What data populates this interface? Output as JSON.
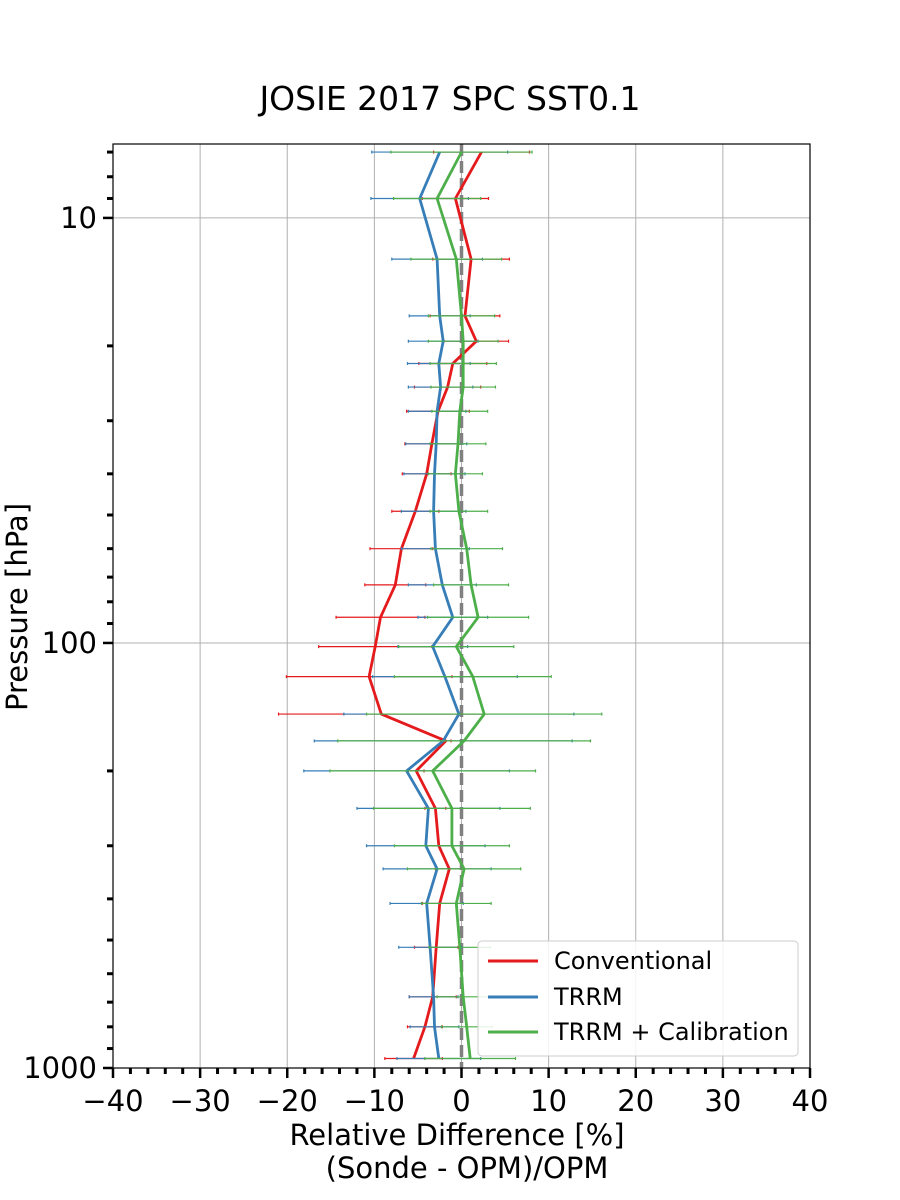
{
  "chart_data": {
    "type": "line",
    "title": "JOSIE 2017 SPC SST0.1",
    "xlabel": "Relative Difference [%]",
    "xlabel_line2": "(Sonde - OPM)/OPM",
    "ylabel": "Pressure [hPa]",
    "xlim": [
      -40,
      40
    ],
    "ylim": [
      1000,
      6.7
    ],
    "yscale": "log",
    "y_inverted": true,
    "grid": true,
    "x_ticks": [
      "−40",
      "−30",
      "−20",
      "−10",
      "0",
      "10",
      "20",
      "30",
      "40"
    ],
    "y_ticks": [
      "10",
      "100",
      "1000"
    ],
    "reference_line": {
      "x": 0,
      "style": "dashed",
      "color": "#808080"
    },
    "legend_position": "lower-right",
    "series": [
      {
        "name": "Conventional",
        "color": "#e41a1c",
        "points": [
          {
            "p": 7.0,
            "x": 2.3,
            "err": 5.5
          },
          {
            "p": 9.0,
            "x": -0.7,
            "err": 3.8
          },
          {
            "p": 12.5,
            "x": 1.1,
            "err": 4.4
          },
          {
            "p": 17.0,
            "x": 0.4,
            "err": 4.0
          },
          {
            "p": 19.5,
            "x": 1.7,
            "err": 3.7
          },
          {
            "p": 22.0,
            "x": -1.0,
            "err": 3.9
          },
          {
            "p": 25.0,
            "x": -1.6,
            "err": 3.8
          },
          {
            "p": 28.5,
            "x": -2.7,
            "err": 3.6
          },
          {
            "p": 34.0,
            "x": -3.4,
            "err": 3.1
          },
          {
            "p": 40.0,
            "x": -4.0,
            "err": 2.8
          },
          {
            "p": 49.0,
            "x": -5.3,
            "err": 2.7
          },
          {
            "p": 60.0,
            "x": -6.9,
            "err": 3.6
          },
          {
            "p": 73.0,
            "x": -7.6,
            "err": 3.5
          },
          {
            "p": 87.0,
            "x": -9.3,
            "err": 5.1
          },
          {
            "p": 102.0,
            "x": -9.9,
            "err": 6.5
          },
          {
            "p": 120.0,
            "x": -10.6,
            "err": 9.5
          },
          {
            "p": 147.0,
            "x": -9.2,
            "err": 11.8
          },
          {
            "p": 170.0,
            "x": -1.8,
            "err": 0.6
          },
          {
            "p": 200.0,
            "x": -5.2,
            "err": 0.9
          },
          {
            "p": 245.0,
            "x": -3.0,
            "err": 1.2
          },
          {
            "p": 300.0,
            "x": -2.6,
            "err": 1.5
          },
          {
            "p": 340.0,
            "x": -1.4,
            "err": 1.6
          },
          {
            "p": 410.0,
            "x": -2.5,
            "err": 2.0
          },
          {
            "p": 520.0,
            "x": -2.9,
            "err": 2.5
          },
          {
            "p": 680.0,
            "x": -3.3,
            "err": 2.7
          },
          {
            "p": 800.0,
            "x": -4.2,
            "err": 2.0
          },
          {
            "p": 950.0,
            "x": -5.5,
            "err": 3.3
          }
        ]
      },
      {
        "name": "TRRM",
        "color": "#377eb8",
        "points": [
          {
            "p": 7.0,
            "x": -2.5,
            "err": 7.8
          },
          {
            "p": 9.0,
            "x": -4.8,
            "err": 5.6
          },
          {
            "p": 12.5,
            "x": -2.8,
            "err": 5.2
          },
          {
            "p": 17.0,
            "x": -2.5,
            "err": 3.5
          },
          {
            "p": 19.5,
            "x": -2.1,
            "err": 4.0
          },
          {
            "p": 22.0,
            "x": -2.6,
            "err": 3.6
          },
          {
            "p": 25.0,
            "x": -2.4,
            "err": 3.7
          },
          {
            "p": 28.5,
            "x": -2.8,
            "err": 3.3
          },
          {
            "p": 34.0,
            "x": -2.9,
            "err": 3.5
          },
          {
            "p": 40.0,
            "x": -3.1,
            "err": 3.5
          },
          {
            "p": 49.0,
            "x": -3.2,
            "err": 3.7
          },
          {
            "p": 60.0,
            "x": -3.0,
            "err": 3.9
          },
          {
            "p": 73.0,
            "x": -2.2,
            "err": 3.9
          },
          {
            "p": 87.0,
            "x": -1.0,
            "err": 4.0
          },
          {
            "p": 102.0,
            "x": -3.3,
            "err": 4.0
          },
          {
            "p": 120.0,
            "x": -1.9,
            "err": 8.3
          },
          {
            "p": 147.0,
            "x": -0.3,
            "err": 13.2
          },
          {
            "p": 170.0,
            "x": -2.1,
            "err": 14.8
          },
          {
            "p": 200.0,
            "x": -6.3,
            "err": 11.8
          },
          {
            "p": 245.0,
            "x": -3.8,
            "err": 8.2
          },
          {
            "p": 300.0,
            "x": -4.1,
            "err": 6.8
          },
          {
            "p": 340.0,
            "x": -2.8,
            "err": 6.2
          },
          {
            "p": 410.0,
            "x": -4.0,
            "err": 4.2
          },
          {
            "p": 520.0,
            "x": -3.6,
            "err": 3.6
          },
          {
            "p": 680.0,
            "x": -3.2,
            "err": 2.8
          },
          {
            "p": 800.0,
            "x": -3.1,
            "err": 2.8
          },
          {
            "p": 950.0,
            "x": -2.6,
            "err": 4.8
          }
        ]
      },
      {
        "name": "TRRM + Calibration",
        "color": "#4daf4a",
        "points": [
          {
            "p": 7.0,
            "x": 0.0,
            "err": 8.1
          },
          {
            "p": 9.0,
            "x": -2.8,
            "err": 5.0
          },
          {
            "p": 12.5,
            "x": -0.6,
            "err": 5.2
          },
          {
            "p": 17.0,
            "x": 0.0,
            "err": 3.8
          },
          {
            "p": 19.5,
            "x": 0.2,
            "err": 4.0
          },
          {
            "p": 22.0,
            "x": 0.2,
            "err": 3.8
          },
          {
            "p": 25.0,
            "x": 0.2,
            "err": 3.7
          },
          {
            "p": 28.5,
            "x": -0.2,
            "err": 3.2
          },
          {
            "p": 34.0,
            "x": -0.4,
            "err": 3.2
          },
          {
            "p": 40.0,
            "x": -0.7,
            "err": 3.1
          },
          {
            "p": 49.0,
            "x": -0.3,
            "err": 3.3
          },
          {
            "p": 60.0,
            "x": 0.6,
            "err": 4.1
          },
          {
            "p": 73.0,
            "x": 1.1,
            "err": 4.3
          },
          {
            "p": 87.0,
            "x": 1.9,
            "err": 5.8
          },
          {
            "p": 102.0,
            "x": -0.6,
            "err": 6.6
          },
          {
            "p": 120.0,
            "x": 1.3,
            "err": 9.0
          },
          {
            "p": 147.0,
            "x": 2.6,
            "err": 13.5
          },
          {
            "p": 170.0,
            "x": 0.3,
            "err": 14.5
          },
          {
            "p": 200.0,
            "x": -3.3,
            "err": 11.8
          },
          {
            "p": 245.0,
            "x": -1.1,
            "err": 9.0
          },
          {
            "p": 300.0,
            "x": -1.1,
            "err": 6.6
          },
          {
            "p": 340.0,
            "x": 0.3,
            "err": 6.5
          },
          {
            "p": 410.0,
            "x": -0.6,
            "err": 4.0
          },
          {
            "p": 520.0,
            "x": -0.2,
            "err": 3.5
          },
          {
            "p": 680.0,
            "x": 0.2,
            "err": 3.0
          },
          {
            "p": 800.0,
            "x": 0.6,
            "err": 2.9
          },
          {
            "p": 950.0,
            "x": 1.0,
            "err": 5.2
          }
        ]
      }
    ]
  }
}
